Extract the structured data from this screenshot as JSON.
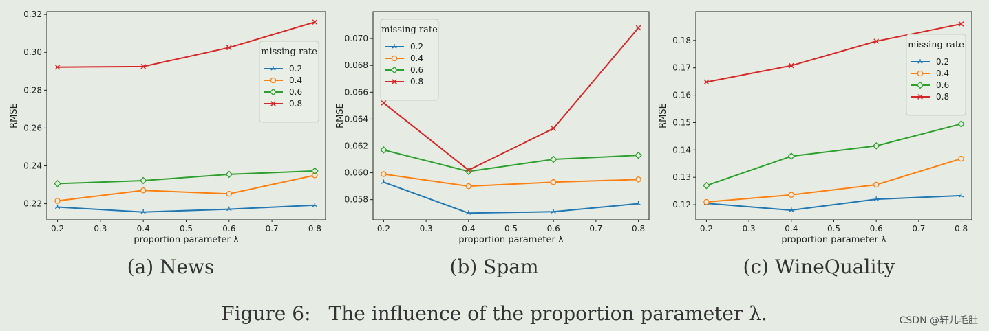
{
  "chart_data": [
    {
      "type": "line",
      "title": "",
      "xlabel": "proportion parameter λ",
      "ylabel": "RMSE",
      "x": [
        0.2,
        0.4,
        0.6,
        0.8
      ],
      "xticks": [
        "0.2",
        "0.3",
        "0.4",
        "0.5",
        "0.6",
        "0.7",
        "0.8"
      ],
      "xlim": [
        0.175,
        0.825
      ],
      "ylim": [
        0.2115,
        0.3215
      ],
      "yticks": [
        "0.22",
        "0.24",
        "0.26",
        "0.28",
        "0.30",
        "0.32"
      ],
      "legend_title": "missing rate",
      "legend_position": "right",
      "series": [
        {
          "name": "0.2",
          "color": "#1f77b4",
          "marker": "tri",
          "values": [
            0.2182,
            0.2156,
            0.2171,
            0.2192
          ]
        },
        {
          "name": "0.4",
          "color": "#ff7f0e",
          "marker": "circle",
          "values": [
            0.2215,
            0.227,
            0.2252,
            0.235
          ]
        },
        {
          "name": "0.6",
          "color": "#2ca02c",
          "marker": "diamond",
          "values": [
            0.2306,
            0.2322,
            0.2355,
            0.2373
          ]
        },
        {
          "name": "0.8",
          "color": "#d62728",
          "marker": "x",
          "values": [
            0.2922,
            0.2925,
            0.3025,
            0.316
          ]
        }
      ],
      "caption": "(a) News"
    },
    {
      "type": "line",
      "title": "",
      "xlabel": "proportion parameter λ",
      "ylabel": "RMSE",
      "x": [
        0.2,
        0.4,
        0.6,
        0.8
      ],
      "xticks": [
        "0.2",
        "0.3",
        "0.4",
        "0.5",
        "0.6",
        "0.7",
        "0.8"
      ],
      "xlim": [
        0.175,
        0.825
      ],
      "ylim": [
        0.0565,
        0.072
      ],
      "yticks": [
        "0.058",
        "0.060",
        "0.062",
        "0.064",
        "0.066",
        "0.068",
        "0.070"
      ],
      "legend_title": "missing rate",
      "legend_position": "top-left",
      "series": [
        {
          "name": "0.2",
          "color": "#1f77b4",
          "marker": "tri",
          "values": [
            0.0593,
            0.057,
            0.0571,
            0.0577
          ]
        },
        {
          "name": "0.4",
          "color": "#ff7f0e",
          "marker": "circle",
          "values": [
            0.0599,
            0.059,
            0.0593,
            0.0595
          ]
        },
        {
          "name": "0.6",
          "color": "#2ca02c",
          "marker": "diamond",
          "values": [
            0.0617,
            0.0601,
            0.061,
            0.0613
          ]
        },
        {
          "name": "0.8",
          "color": "#d62728",
          "marker": "x",
          "values": [
            0.0652,
            0.0602,
            0.0633,
            0.0708
          ]
        }
      ],
      "caption": "(b) Spam"
    },
    {
      "type": "line",
      "title": "",
      "xlabel": "proportion parameter λ",
      "ylabel": "RMSE",
      "x": [
        0.2,
        0.4,
        0.6,
        0.8
      ],
      "xticks": [
        "0.2",
        "0.3",
        "0.4",
        "0.5",
        "0.6",
        "0.7",
        "0.8"
      ],
      "xlim": [
        0.175,
        0.825
      ],
      "ylim": [
        0.1145,
        0.1905
      ],
      "yticks": [
        "0.12",
        "0.13",
        "0.14",
        "0.15",
        "0.16",
        "0.17",
        "0.18"
      ],
      "legend_title": "missing rate",
      "legend_position": "right",
      "series": [
        {
          "name": "0.2",
          "color": "#1f77b4",
          "marker": "tri",
          "values": [
            0.1205,
            0.118,
            0.122,
            0.1233
          ]
        },
        {
          "name": "0.4",
          "color": "#ff7f0e",
          "marker": "circle",
          "values": [
            0.121,
            0.1236,
            0.1273,
            0.1368
          ]
        },
        {
          "name": "0.6",
          "color": "#2ca02c",
          "marker": "diamond",
          "values": [
            0.127,
            0.1377,
            0.1415,
            0.1495
          ]
        },
        {
          "name": "0.8",
          "color": "#d62728",
          "marker": "x",
          "values": [
            0.1648,
            0.1708,
            0.1797,
            0.186
          ]
        }
      ],
      "caption": "(c) WineQuality"
    }
  ],
  "figure_caption": {
    "label": "Figure 6:",
    "text": "The influence of the proportion parameter λ."
  },
  "watermark": "CSDN @轩儿毛肚"
}
